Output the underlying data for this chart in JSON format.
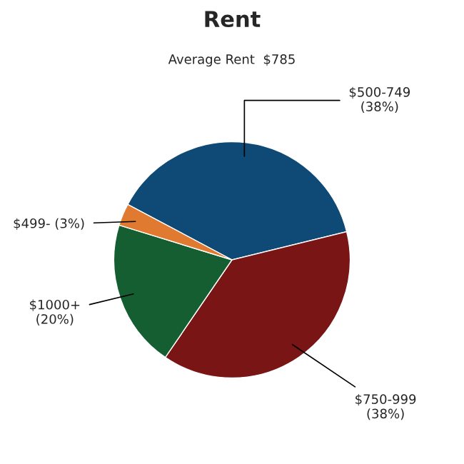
{
  "chart_data": {
    "type": "pie",
    "title": "Rent",
    "subtitle": "Average Rent  $785",
    "categories": [
      "$500-749",
      "$750-999",
      "$1000+",
      "$499-"
    ],
    "values": [
      38,
      38,
      20,
      3
    ],
    "value_labels": [
      "(38%)",
      "(38%)",
      "(20%)",
      "(3%)"
    ],
    "colors": [
      "#0e4a75",
      "#7a1515",
      "#155e32",
      "#e07a30"
    ],
    "legend": false
  }
}
